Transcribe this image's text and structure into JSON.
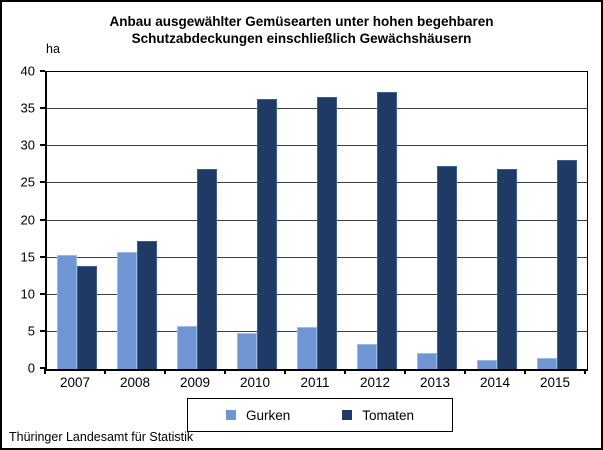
{
  "title": {
    "line1": "Anbau ausgewählter Gemüsearten unter hohen begehbaren",
    "line2": "Schutzabdeckungen einschließlich Gewächshäusern"
  },
  "y_axis_unit": "ha",
  "footer": {
    "source": "Thüringer Landesamt für Statistik"
  },
  "legend": [
    {
      "label": "Gurken",
      "color": "#6f95d2"
    },
    {
      "label": "Tomaten",
      "color": "#1f3a64"
    }
  ],
  "chart_data": {
    "type": "bar",
    "title": "Anbau ausgewählter Gemüsearten unter hohen begehbaren Schutzabdeckungen einschließlich Gewächshäusern",
    "ylabel": "ha",
    "categories": [
      "2007",
      "2008",
      "2009",
      "2010",
      "2011",
      "2012",
      "2013",
      "2014",
      "2015"
    ],
    "series": [
      {
        "name": "Gurken",
        "color": "#6f95d2",
        "border_color": "#9cbbe6",
        "values": [
          15.3,
          15.7,
          5.8,
          4.8,
          5.6,
          3.4,
          2.2,
          1.2,
          1.5
        ]
      },
      {
        "name": "Tomaten",
        "color": "#1f3a64",
        "border_color": "#3d5f94",
        "values": [
          13.9,
          17.2,
          27.0,
          36.3,
          36.6,
          37.3,
          27.3,
          26.9,
          28.2
        ]
      }
    ],
    "ylim": [
      0,
      40
    ],
    "ytick_step": 5,
    "grid": true,
    "legend_position": "bottom-center",
    "source": "Thüringer Landesamt für Statistik"
  }
}
